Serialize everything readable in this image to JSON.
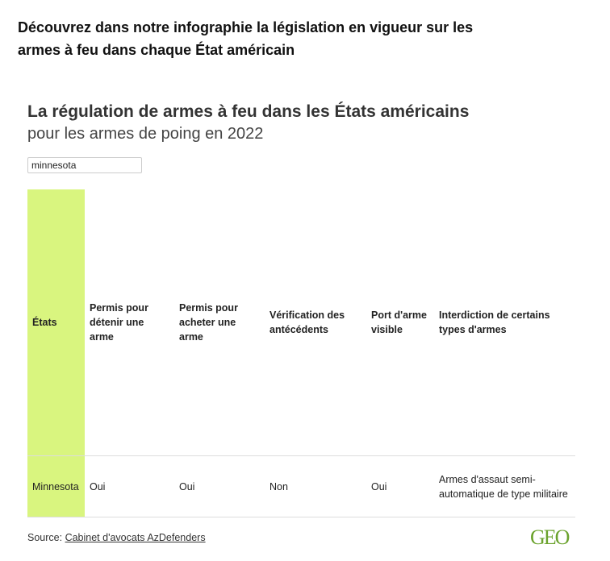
{
  "intro": "Découvrez dans notre infographie la législation en vigueur sur les armes à feu dans chaque État américain",
  "chart": {
    "title": "La régulation de armes à feu dans les États américains",
    "subtitle": "pour les armes de poing en 2022",
    "search_value": "minnesota",
    "headers": [
      "États",
      "Permis pour détenir une arme",
      "Permis pour acheter une arme",
      "Vérification des antécédents",
      "Port d'arme visible",
      "Interdiction de certains types d'armes"
    ],
    "rows": [
      [
        "Minnesota",
        "Oui",
        "Oui",
        "Non",
        "Oui",
        "Armes d'assaut semi-automatique de type militaire"
      ]
    ],
    "highlight_color": "#d9f57f"
  },
  "footer": {
    "source_label": "Source: ",
    "source_link": "Cabinet d'avocats AzDefenders",
    "logo": "GEO"
  }
}
